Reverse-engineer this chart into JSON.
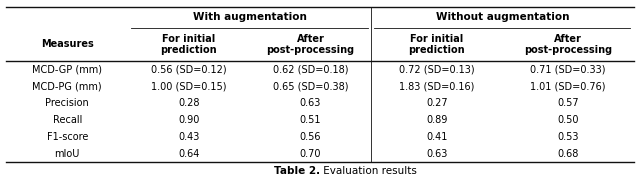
{
  "title_bold": "Table 2.",
  "title_normal": " Evaluation results",
  "col_headers_top": [
    "With augmentation",
    "Without augmentation"
  ],
  "col_headers_mid": [
    "Measures",
    "For initial\nprediction",
    "After\npost-processing",
    "For initial\nprediction",
    "After\npost-processing"
  ],
  "rows": [
    [
      "MCD-GP (mm)",
      "0.56 (SD=0.12)",
      "0.62 (SD=0.18)",
      "0.72 (SD=0.13)",
      "0.71 (SD=0.33)"
    ],
    [
      "MCD-PG (mm)",
      "1.00 (SD=0.15)",
      "0.65 (SD=0.38)",
      "1.83 (SD=0.16)",
      "1.01 (SD=0.76)"
    ],
    [
      "Precision",
      "0.28",
      "0.63",
      "0.27",
      "0.57"
    ],
    [
      "Recall",
      "0.90",
      "0.51",
      "0.89",
      "0.50"
    ],
    [
      "F1-score",
      "0.43",
      "0.56",
      "0.41",
      "0.53"
    ],
    [
      "mIoU",
      "0.64",
      "0.70",
      "0.63",
      "0.68"
    ]
  ],
  "background": "#ffffff",
  "text_color": "#000000",
  "figsize": [
    6.4,
    1.84
  ],
  "dpi": 100
}
